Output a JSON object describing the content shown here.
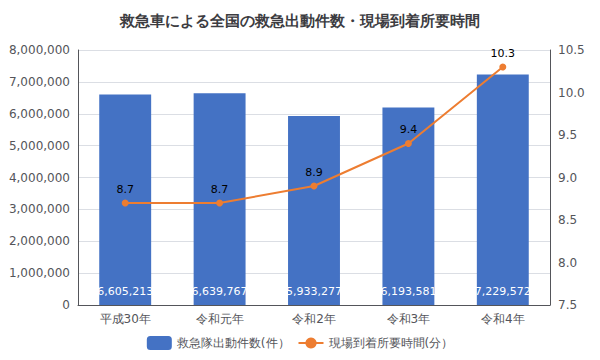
{
  "chart_data": {
    "type": "bar",
    "title": "救急車による全国の救急出動件数・現場到着所要時間",
    "categories": [
      "平成30年",
      "令和元年",
      "令和2年",
      "令和3年",
      "令和4年"
    ],
    "series": [
      {
        "name": "救急隊出動件数(件）",
        "type": "bar",
        "color": "#4472C4",
        "values": [
          6605213,
          6639767,
          5933277,
          6193581,
          7229572
        ],
        "value_labels": [
          "6,605,213",
          "6,639,767",
          "5,933,277",
          "6,193,581",
          "7,229,572"
        ]
      },
      {
        "name": "現場到着所要時間(分）",
        "type": "line",
        "axis": "y2",
        "color": "#ED7D31",
        "marker": "circle",
        "values": [
          8.7,
          8.7,
          8.9,
          9.4,
          10.3
        ]
      }
    ],
    "ylim": [
      0,
      8000000
    ],
    "yticks": [
      0,
      {
        "value": 1000000,
        "label": "1,000,000"
      },
      {
        "value": 2000000,
        "label": "2,000,000"
      },
      {
        "value": 3000000,
        "label": "3,000,000"
      },
      {
        "value": 4000000,
        "label": "4,000,000"
      },
      {
        "value": 5000000,
        "label": "5,000,000"
      },
      {
        "value": 6000000,
        "label": "6,000,000"
      },
      {
        "value": 7000000,
        "label": "7,000,000"
      },
      {
        "value": 8000000,
        "label": "8,000,000"
      }
    ],
    "y2lim": [
      7.5,
      10.5
    ],
    "y2ticks": [
      7.5,
      {
        "value": 8,
        "label": "8.0"
      },
      8.5,
      {
        "value": 9,
        "label": "9.0"
      },
      9.5,
      {
        "value": 10,
        "label": "10.0"
      },
      10.5
    ],
    "grid": true,
    "legend": "bottom",
    "data_labels": true
  }
}
